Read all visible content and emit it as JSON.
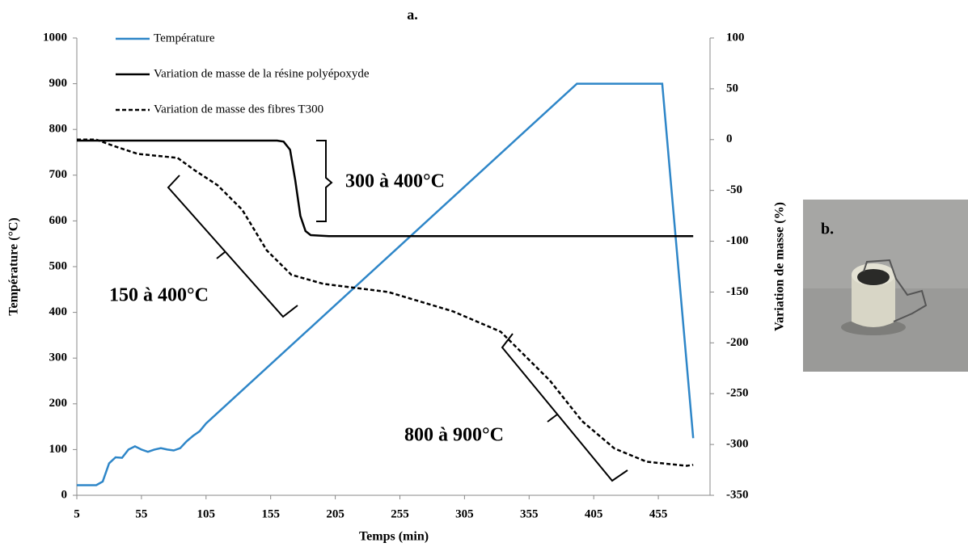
{
  "chart_data": {
    "type": "line",
    "title": "a.",
    "image_label": "b.",
    "x_label": "Temps (min)",
    "y_label": "Température (°C)",
    "y2_label": "Variation de masse (%)",
    "xlim": [
      5,
      495
    ],
    "xticks": [
      5,
      55,
      105,
      155,
      205,
      255,
      305,
      355,
      405,
      455
    ],
    "ylim": [
      0,
      1000
    ],
    "yticks": [
      0,
      100,
      200,
      300,
      400,
      500,
      600,
      700,
      800,
      900,
      1000
    ],
    "y2lim": [
      -350,
      100
    ],
    "y2ticks": [
      -350,
      -300,
      -250,
      -200,
      -150,
      -100,
      -50,
      0,
      50,
      100
    ],
    "series": [
      {
        "name": "Température",
        "color": "#2e86c8",
        "style": "solid",
        "axis": "y",
        "x": [
          5,
          20,
          25,
          30,
          35,
          40,
          45,
          50,
          55,
          60,
          65,
          70,
          75,
          80,
          85,
          90,
          95,
          100,
          105,
          392,
          458,
          482
        ],
        "values": [
          22,
          22,
          30,
          70,
          83,
          82,
          100,
          107,
          100,
          95,
          100,
          103,
          100,
          98,
          103,
          118,
          130,
          140,
          157,
          900,
          900,
          125
        ]
      },
      {
        "name": "Variation de masse de la résine polyépoxyde",
        "color": "#000000",
        "style": "solid",
        "axis": "y2",
        "x": [
          5,
          160,
          165,
          170,
          174,
          178,
          182,
          186,
          200,
          482
        ],
        "values": [
          -1,
          -1,
          -2,
          -10,
          -40,
          -75,
          -90,
          -94,
          -95,
          -95
        ]
      },
      {
        "name": "Variation de masse des fibres T300",
        "color": "#000000",
        "style": "dashed",
        "axis": "y2",
        "x": [
          5,
          20,
          33,
          52,
          83,
          96,
          114,
          133,
          152,
          171,
          196,
          246,
          296,
          333,
          371,
          396,
          421,
          446,
          477,
          482
        ],
        "values": [
          0,
          0,
          -6,
          -14,
          -18,
          -30,
          -45,
          -69,
          -109,
          -133,
          -142,
          -150,
          -169,
          -189,
          -237,
          -277,
          -304,
          -317,
          -321,
          -320
        ]
      }
    ],
    "annotations": [
      "300 à 400°C",
      "150 à 400°C",
      "800 à 900°C"
    ]
  }
}
